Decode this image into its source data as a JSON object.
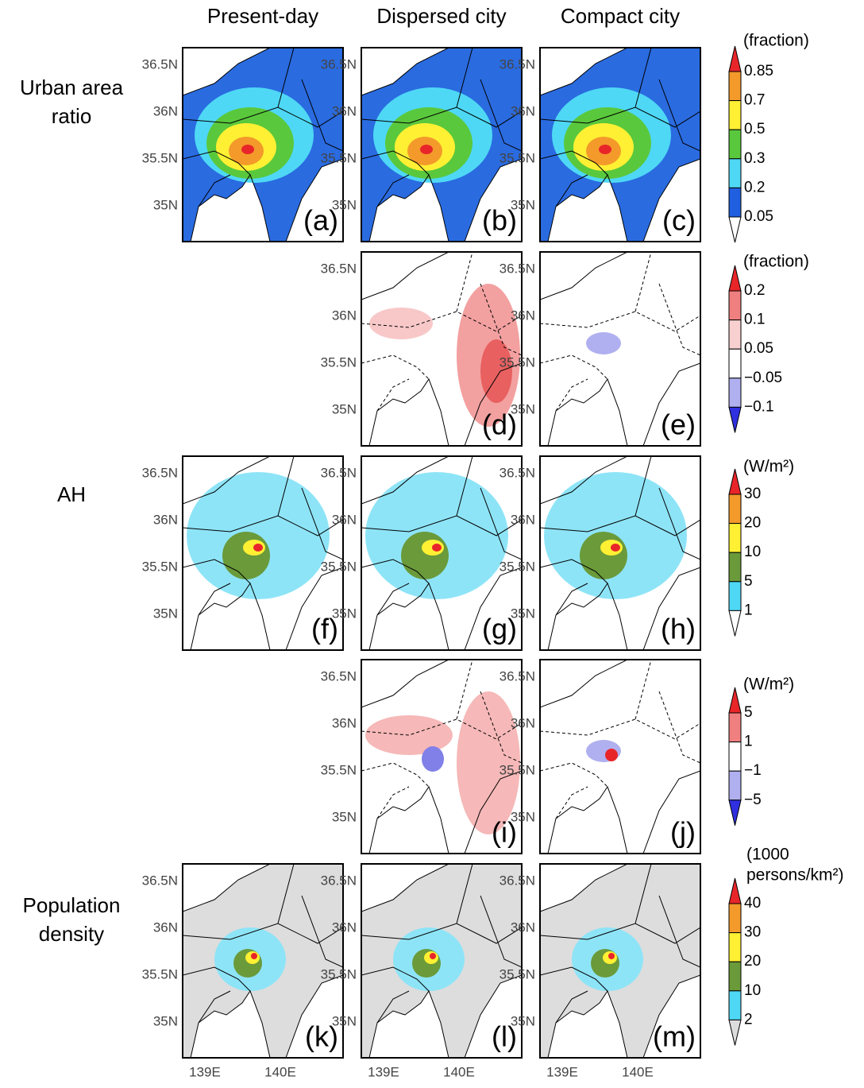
{
  "columns": [
    "Present-day",
    "Dispersed city",
    "Compact city"
  ],
  "row_labels": [
    {
      "lines": [
        "Urban area",
        "ratio"
      ]
    },
    {
      "lines": [
        "AH"
      ]
    },
    {
      "lines": [
        "Population",
        "density"
      ]
    }
  ],
  "lat_ticks": [
    "36.5N",
    "36N",
    "35.5N",
    "35N"
  ],
  "lon_ticks": [
    "139E",
    "140E"
  ],
  "panels": [
    "(a)",
    "(b)",
    "(c)",
    "(d)",
    "(e)",
    "(f)",
    "(g)",
    "(h)",
    "(i)",
    "(j)",
    "(k)",
    "(l)",
    "(m)"
  ],
  "colorbars": [
    {
      "unit": [
        "(fraction)"
      ],
      "ticks": [
        "0.85",
        "0.7",
        "0.5",
        "0.3",
        "0.2",
        "0.05"
      ]
    },
    {
      "unit": [
        "(fraction)"
      ],
      "ticks": [
        "0.2",
        "0.1",
        "0.05",
        "−0.05",
        "−0.1"
      ]
    },
    {
      "unit": [
        "(W/m²)"
      ],
      "ticks": [
        "30",
        "20",
        "10",
        "5",
        "1"
      ]
    },
    {
      "unit": [
        "(W/m²)"
      ],
      "ticks": [
        "5",
        "1",
        "−1",
        "−5"
      ]
    },
    {
      "unit": [
        "(1000",
        "persons/km²)"
      ],
      "ticks": [
        "40",
        "30",
        "20",
        "10",
        "2"
      ]
    }
  ]
}
